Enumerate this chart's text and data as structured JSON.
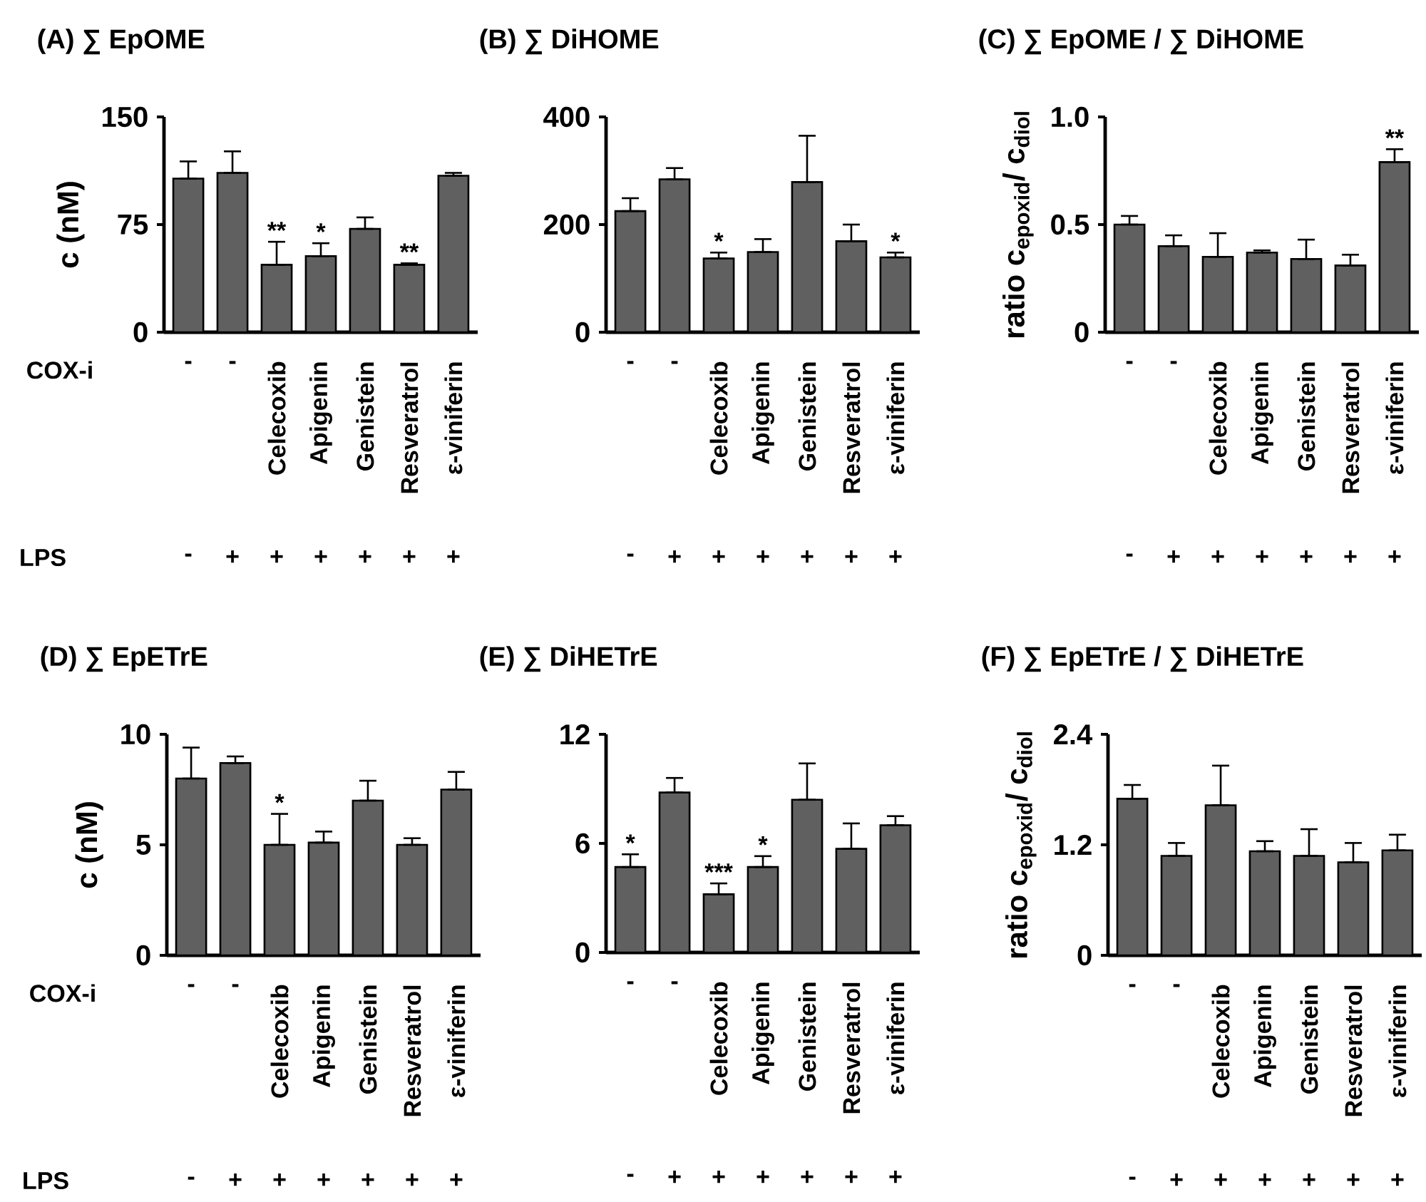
{
  "chart_data": [
    {
      "type": "bar",
      "title": "(A) ∑ EpOME",
      "ylabel": "c (nM)",
      "xlabel": "COX-i",
      "categories": [
        "-",
        "-",
        "Celecoxib",
        "Apigenin",
        "Genistein",
        "Resveratrol",
        "ε-viniferin"
      ],
      "values": [
        107,
        111,
        47,
        53,
        72,
        47,
        109
      ],
      "errors": [
        [
          107,
          119
        ],
        [
          111,
          126
        ],
        [
          47,
          63
        ],
        [
          53,
          62
        ],
        [
          72,
          80
        ],
        [
          47,
          48
        ],
        [
          109,
          111
        ]
      ],
      "color": "#606060",
      "ylim": [
        0,
        150
      ],
      "yticks": [
        0,
        75,
        150
      ],
      "value_labels": [
        null,
        null,
        "**",
        "*",
        null,
        "**",
        null
      ],
      "annotations": [
        "LPS",
        "-",
        "+",
        "+",
        "+",
        "+",
        "+",
        "+"
      ]
    },
    {
      "type": "bar",
      "title": "(B) ∑ DiHOME",
      "categories": [
        "-",
        "-",
        "Celecoxib",
        "Apigenin",
        "Genistein",
        "Resveratrol",
        "ε-viniferin"
      ],
      "values": [
        225,
        284,
        137,
        149,
        279,
        169,
        139
      ],
      "errors": [
        [
          225,
          249
        ],
        [
          284,
          305
        ],
        [
          137,
          148
        ],
        [
          149,
          173
        ],
        [
          279,
          365
        ],
        [
          169,
          200
        ],
        [
          139,
          148
        ]
      ],
      "color": "#606060",
      "ylim": [
        0,
        400
      ],
      "yticks": [
        0,
        200,
        400
      ],
      "value_labels": [
        null,
        null,
        "*",
        null,
        null,
        null,
        "*"
      ],
      "annotations": [
        "-",
        "+",
        "+",
        "+",
        "+",
        "+",
        "+"
      ]
    },
    {
      "type": "bar",
      "title": "(C) ∑ EpOME / ∑ DiHOME",
      "ylabel": "ratio c$_{epoxid}$/ c$_{diol}$",
      "categories": [
        "-",
        "-",
        "Celecoxib",
        "Apigenin",
        "Genistein",
        "Resveratrol",
        "ε-viniferin"
      ],
      "values": [
        0.5,
        0.4,
        0.35,
        0.37,
        0.34,
        0.31,
        0.79
      ],
      "errors": [
        [
          0.5,
          0.54
        ],
        [
          0.4,
          0.45
        ],
        [
          0.35,
          0.46
        ],
        [
          0.37,
          0.38
        ],
        [
          0.34,
          0.43
        ],
        [
          0.31,
          0.36
        ],
        [
          0.79,
          0.85
        ]
      ],
      "color": "#606060",
      "ylim": [
        0,
        1
      ],
      "yticks": [
        0,
        0.5,
        {
          "value": 1,
          "label": "1.0"
        }
      ],
      "value_labels": [
        null,
        null,
        null,
        null,
        null,
        null,
        "**"
      ],
      "annotations": [
        "-",
        "+",
        "+",
        "+",
        "+",
        "+",
        "+"
      ]
    },
    {
      "type": "bar",
      "title": "(D) ∑ EpETrE",
      "ylabel": "c (nM)",
      "xlabel": "COX-i",
      "categories": [
        "-",
        "-",
        "Celecoxib",
        "Apigenin",
        "Genistein",
        "Resveratrol",
        "ε-viniferin"
      ],
      "values": [
        8.0,
        8.7,
        5.0,
        5.1,
        7.0,
        5.0,
        7.5
      ],
      "errors": [
        [
          8.0,
          9.4
        ],
        [
          8.7,
          9.0
        ],
        [
          5.0,
          6.4
        ],
        [
          5.1,
          5.6
        ],
        [
          7.0,
          7.9
        ],
        [
          5.0,
          5.3
        ],
        [
          7.5,
          8.3
        ]
      ],
      "color": "#606060",
      "ylim": [
        0,
        10
      ],
      "yticks": [
        0,
        5,
        10
      ],
      "value_labels": [
        null,
        null,
        "*",
        null,
        null,
        null,
        null
      ],
      "annotations": [
        "LPS",
        "-",
        "+",
        "+",
        "+",
        "+",
        "+",
        "+"
      ]
    },
    {
      "type": "bar",
      "title": "(E) ∑ DiHETrE",
      "categories": [
        "-",
        "-",
        "Celecoxib",
        "Apigenin",
        "Genistein",
        "Resveratrol",
        "ε-viniferin"
      ],
      "values": [
        4.7,
        8.8,
        3.2,
        4.7,
        8.4,
        5.7,
        7.0
      ],
      "errors": [
        [
          4.7,
          5.4
        ],
        [
          8.8,
          9.6
        ],
        [
          3.2,
          3.8
        ],
        [
          4.7,
          5.3
        ],
        [
          8.4,
          10.4
        ],
        [
          5.7,
          7.1
        ],
        [
          7.0,
          7.5
        ]
      ],
      "color": "#606060",
      "ylim": [
        0,
        12
      ],
      "yticks": [
        0,
        6,
        12
      ],
      "value_labels": [
        "*",
        null,
        "***",
        "*",
        null,
        null,
        null
      ],
      "annotations": [
        "-",
        "+",
        "+",
        "+",
        "+",
        "+",
        "+"
      ]
    },
    {
      "type": "bar",
      "title": "(F) ∑ EpETrE / ∑ DiHETrE",
      "ylabel": "ratio c$_{epoxid}$/ c$_{diol}$",
      "categories": [
        "-",
        "-",
        "Celecoxib",
        "Apigenin",
        "Genistein",
        "Resveratrol",
        "ε-viniferin"
      ],
      "values": [
        1.7,
        1.08,
        1.63,
        1.13,
        1.08,
        1.01,
        1.14
      ],
      "errors": [
        [
          1.7,
          1.85
        ],
        [
          1.08,
          1.22
        ],
        [
          1.63,
          2.06
        ],
        [
          1.13,
          1.24
        ],
        [
          1.08,
          1.37
        ],
        [
          1.01,
          1.22
        ],
        [
          1.14,
          1.31
        ]
      ],
      "color": "#606060",
      "ylim": [
        0,
        2.4
      ],
      "yticks": [
        0,
        1.2,
        2.4
      ],
      "value_labels": [
        null,
        null,
        null,
        null,
        null,
        null,
        null
      ],
      "annotations": [
        "-",
        "+",
        "+",
        "+",
        "+",
        "+",
        "+"
      ]
    }
  ]
}
